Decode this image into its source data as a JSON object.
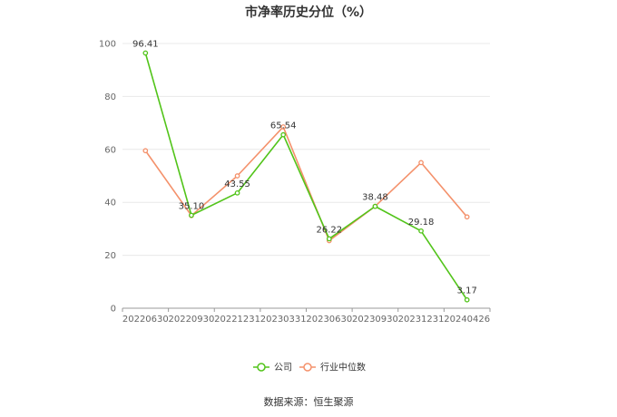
{
  "chart_data": {
    "type": "line",
    "title": "市净率历史分位（%）",
    "categories": [
      "20220630",
      "20220930",
      "20221231",
      "20230331",
      "20230630",
      "20230930",
      "20231231",
      "20240426"
    ],
    "ylim": [
      0,
      100
    ],
    "yticks": [
      0,
      20,
      40,
      60,
      80,
      100
    ],
    "grid": true,
    "legend_position": "bottom",
    "series": [
      {
        "name": "公司",
        "color": "#52c41a",
        "values": [
          96.41,
          35.1,
          43.55,
          65.54,
          26.22,
          38.48,
          29.18,
          3.17
        ],
        "labels": [
          "96.41",
          "35.10",
          "43.55",
          "65.54",
          "26.22",
          "38.48",
          "29.18",
          "3.17"
        ]
      },
      {
        "name": "行业中位数",
        "color": "#f4916b",
        "values": [
          59.5,
          35.0,
          50.0,
          68.5,
          25.5,
          38.5,
          55.0,
          34.5
        ]
      }
    ]
  },
  "footer": {
    "source": "数据来源：恒生聚源"
  }
}
